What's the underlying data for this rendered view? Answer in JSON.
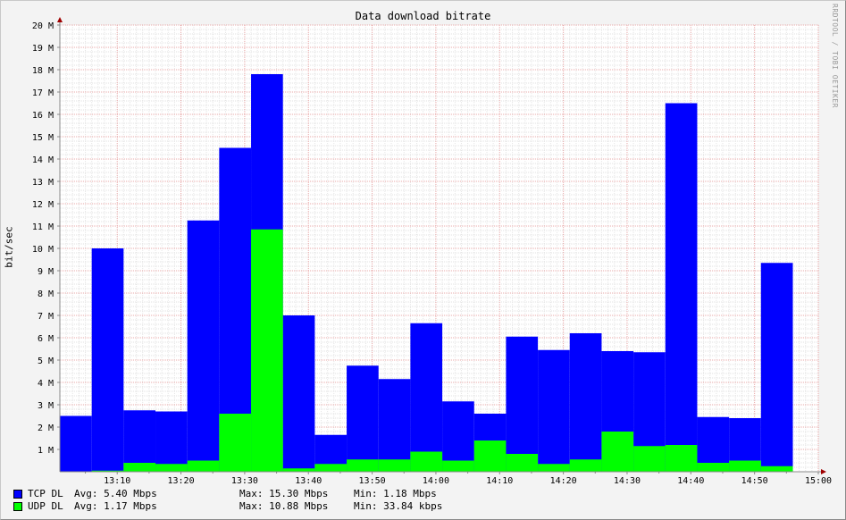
{
  "chart_data": {
    "type": "area",
    "title": "Data download bitrate",
    "ylabel": "bit/sec",
    "watermark": "RRDTOOL / TOBI OETIKER",
    "ylim": [
      0,
      20
    ],
    "y_unit": "M",
    "y_ticks": [
      "1 M",
      "2 M",
      "3 M",
      "4 M",
      "5 M",
      "6 M",
      "7 M",
      "8 M",
      "9 M",
      "10 M",
      "11 M",
      "12 M",
      "13 M",
      "14 M",
      "15 M",
      "16 M",
      "17 M",
      "18 M",
      "19 M",
      "20 M"
    ],
    "x_ticks": [
      "13:10",
      "13:20",
      "13:30",
      "13:40",
      "13:50",
      "14:00",
      "14:10",
      "14:20",
      "14:30",
      "14:40",
      "14:50",
      "15:00"
    ],
    "x_range": [
      "13:01",
      "15:00"
    ],
    "bin_minutes": 5,
    "bin_starts": [
      "13:01",
      "13:06",
      "13:11",
      "13:16",
      "13:21",
      "13:26",
      "13:31",
      "13:36",
      "13:41",
      "13:46",
      "13:51",
      "13:56",
      "14:01",
      "14:06",
      "14:11",
      "14:16",
      "14:21",
      "14:26",
      "14:31",
      "14:36",
      "14:41",
      "14:46",
      "14:51"
    ],
    "series": [
      {
        "name": "TCP DL",
        "color": "#0000ff",
        "values": [
          2.5,
          10.0,
          2.75,
          2.7,
          11.25,
          14.5,
          17.8,
          7.0,
          1.65,
          4.75,
          4.15,
          6.65,
          3.15,
          2.6,
          6.05,
          5.45,
          6.2,
          5.4,
          5.35,
          16.5,
          2.45,
          2.4,
          9.35
        ]
      },
      {
        "name": "UDP DL",
        "color": "#00ff00",
        "values": [
          0.0,
          0.05,
          0.4,
          0.35,
          0.5,
          2.6,
          10.85,
          0.15,
          0.35,
          0.55,
          0.55,
          0.9,
          0.5,
          1.4,
          0.8,
          0.35,
          0.55,
          1.8,
          1.15,
          1.2,
          0.4,
          0.5,
          0.25
        ]
      }
    ],
    "grid": true
  },
  "legend": [
    {
      "label": "TCP DL",
      "avg": "Avg: 5.40 Mbps",
      "max": "Max: 15.30 Mbps",
      "min": "Min: 1.18 Mbps",
      "color": "#0000ff"
    },
    {
      "label": "UDP DL",
      "avg": "Avg: 1.17 Mbps",
      "max": "Max: 10.88 Mbps",
      "min": "Min: 33.84 kbps",
      "color": "#00ff00"
    }
  ]
}
